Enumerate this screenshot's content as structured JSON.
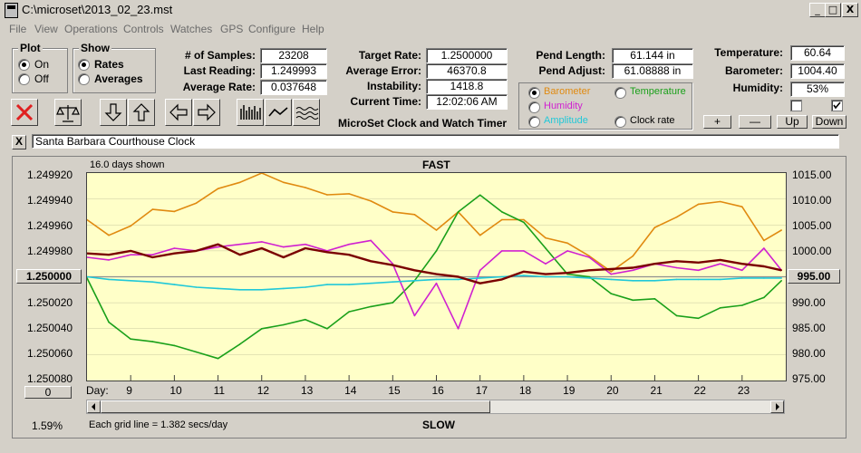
{
  "window": {
    "title": "C:\\microset\\2013_02_23.mst",
    "min_label": "_",
    "max_label": "□",
    "close_label": "X"
  },
  "menu": [
    "File",
    "View",
    "Operations",
    "Controls",
    "Watches",
    "GPS",
    "Configure",
    "Help"
  ],
  "plot_group": {
    "title": "Plot",
    "on": "On",
    "off": "Off",
    "selected": "On"
  },
  "show_group": {
    "title": "Show",
    "rates": "Rates",
    "averages": "Averages",
    "selected": "Rates"
  },
  "stats": {
    "samples_label": "# of Samples:",
    "samples": "23208",
    "last_label": "Last Reading:",
    "last": "1.249993",
    "avg_label": "Average Rate:",
    "avg": "0.037648",
    "target_label": "Target Rate:",
    "target": "1.2500000",
    "error_label": "Average Error:",
    "error": "46370.8 min/day",
    "instab_label": "Instability:",
    "instab": "1418.8 mins/day",
    "time_label": "Current Time:",
    "time": "12:02:06 AM",
    "pend_len_label": "Pend Length:",
    "pend_len": "61.144 in",
    "pend_adj_label": "Pend Adjust:",
    "pend_adj": "61.08888 in",
    "temp_label": "Temperature:",
    "temp": "60.64",
    "baro_label": "Barometer:",
    "baro": "1004.40",
    "hum_label": "Humidity:",
    "hum": "53%"
  },
  "app_subtitle": "MicroSet Clock and Watch Timer",
  "overlay": {
    "barometer": "Barometer",
    "temperature": "Temperature",
    "humidity": "Humidity",
    "amplitude": "Amplitude",
    "clock_rate": "Clock rate",
    "selected": "Barometer",
    "colors": {
      "barometer": "#e08a10",
      "temperature": "#1aa01a",
      "humidity": "#d020d0",
      "amplitude": "#20c8d8",
      "clock_rate": "#000000"
    }
  },
  "scale_buttons": {
    "plus": "+",
    "minus": "—",
    "up": "Up",
    "down": "Down"
  },
  "note": {
    "close": "X",
    "text": "Santa Barbara Courthouse Clock"
  },
  "chart": {
    "days_shown": "16.0 days shown",
    "top_label": "FAST",
    "bottom_label": "SLOW",
    "left_axis": [
      "1.249920",
      "1.249940",
      "1.249960",
      "1.249980",
      "1.250000",
      "1.250020",
      "1.250040",
      "1.250060",
      "1.250080"
    ],
    "right_axis": [
      "1015.00",
      "1010.00",
      "1005.00",
      "1000.00",
      "995.00",
      "990.00",
      "985.00",
      "980.00",
      "975.00"
    ],
    "x_title": "Day:",
    "x_labels": [
      "9",
      "10",
      "11",
      "12",
      "13",
      "14",
      "15",
      "16",
      "17",
      "18",
      "19",
      "20",
      "21",
      "22",
      "23"
    ],
    "center_left": "1.250000",
    "center_right": "995.00",
    "offset_btn": "0",
    "percent": "1.59%",
    "grid_note": "Each grid line = 1.382 secs/day",
    "bg": "#ffffc8"
  },
  "chart_data": {
    "type": "line",
    "title": "FAST",
    "xlabel": "Day:",
    "ylabel_left": "rate",
    "ylabel_right": "Barometer",
    "xlim": [
      8.0,
      24.0
    ],
    "ylim_left": [
      1.24992,
      1.25008
    ],
    "ylim_right": [
      975.0,
      1015.0
    ],
    "x": [
      8.0,
      8.5,
      9.0,
      9.5,
      10.0,
      10.5,
      11.0,
      11.5,
      12.0,
      12.5,
      13.0,
      13.5,
      14.0,
      14.5,
      15.0,
      15.5,
      16.0,
      16.5,
      17.0,
      17.5,
      18.0,
      18.5,
      19.0,
      19.5,
      20.0,
      20.5,
      21.0,
      21.5,
      22.0,
      22.5,
      23.0,
      23.5,
      23.9
    ],
    "series": [
      {
        "name": "Barometer",
        "axis": "right",
        "color": "#e08a10",
        "values": [
          1006.0,
          1003.0,
          1004.8,
          1008.0,
          1007.6,
          1009.2,
          1012.0,
          1013.2,
          1015.0,
          1013.2,
          1012.2,
          1010.8,
          1011.0,
          1009.6,
          1007.5,
          1007.0,
          1004.0,
          1007.5,
          1003.0,
          1006.0,
          1006.0,
          1002.5,
          1001.5,
          999.0,
          996.0,
          999.0,
          1004.5,
          1006.5,
          1009.0,
          1009.5,
          1008.5,
          1002.0,
          1004.0
        ]
      },
      {
        "name": "Temperature",
        "axis": "left",
        "color": "#1aa01a",
        "values": [
          1.250001,
          1.250035,
          1.250048,
          1.25005,
          1.250053,
          1.250058,
          1.250063,
          1.250052,
          1.25004,
          1.250037,
          1.250033,
          1.25004,
          1.250027,
          1.250023,
          1.25002,
          1.250003,
          1.24998,
          1.24995,
          1.249937,
          1.24995,
          1.249958,
          1.249978,
          1.249998,
          1.25,
          1.250013,
          1.250018,
          1.250017,
          1.25003,
          1.250032,
          1.250024,
          1.250022,
          1.250016,
          1.250003
        ]
      },
      {
        "name": "Humidity",
        "axis": "left",
        "color": "#d020d0",
        "values": [
          1.249985,
          1.249987,
          1.249983,
          1.249983,
          1.249978,
          1.24998,
          1.249977,
          1.249975,
          1.249973,
          1.249977,
          1.249975,
          1.24998,
          1.249975,
          1.249972,
          1.24999,
          1.25003,
          1.250005,
          1.25004,
          1.249995,
          1.24998,
          1.24998,
          1.24999,
          1.24998,
          1.249985,
          1.249998,
          1.249995,
          1.24999,
          1.249993,
          1.249995,
          1.24999,
          1.249995,
          1.249978,
          1.249995
        ]
      },
      {
        "name": "Amplitude",
        "axis": "left",
        "color": "#20c8d8",
        "values": [
          1.25,
          1.250002,
          1.250003,
          1.250004,
          1.250006,
          1.250008,
          1.250009,
          1.25001,
          1.25001,
          1.250009,
          1.250008,
          1.250006,
          1.250006,
          1.250005,
          1.250004,
          1.250003,
          1.250002,
          1.250002,
          1.250001,
          1.25,
          1.249999,
          1.25,
          1.25,
          1.250001,
          1.250002,
          1.250003,
          1.250003,
          1.250002,
          1.250002,
          1.250002,
          1.250001,
          1.250001,
          1.250001
        ]
      },
      {
        "name": "Clock rate",
        "axis": "left",
        "color": "#7a0000",
        "values": [
          1.249982,
          1.249983,
          1.24998,
          1.249985,
          1.249982,
          1.24998,
          1.249975,
          1.249983,
          1.249978,
          1.249985,
          1.249978,
          1.249981,
          1.249983,
          1.249988,
          1.249991,
          1.249995,
          1.249998,
          1.25,
          1.250005,
          1.250002,
          1.249996,
          1.249998,
          1.249997,
          1.249995,
          1.249994,
          1.249993,
          1.24999,
          1.249988,
          1.249989,
          1.249987,
          1.24999,
          1.249992,
          1.249995
        ]
      }
    ]
  }
}
